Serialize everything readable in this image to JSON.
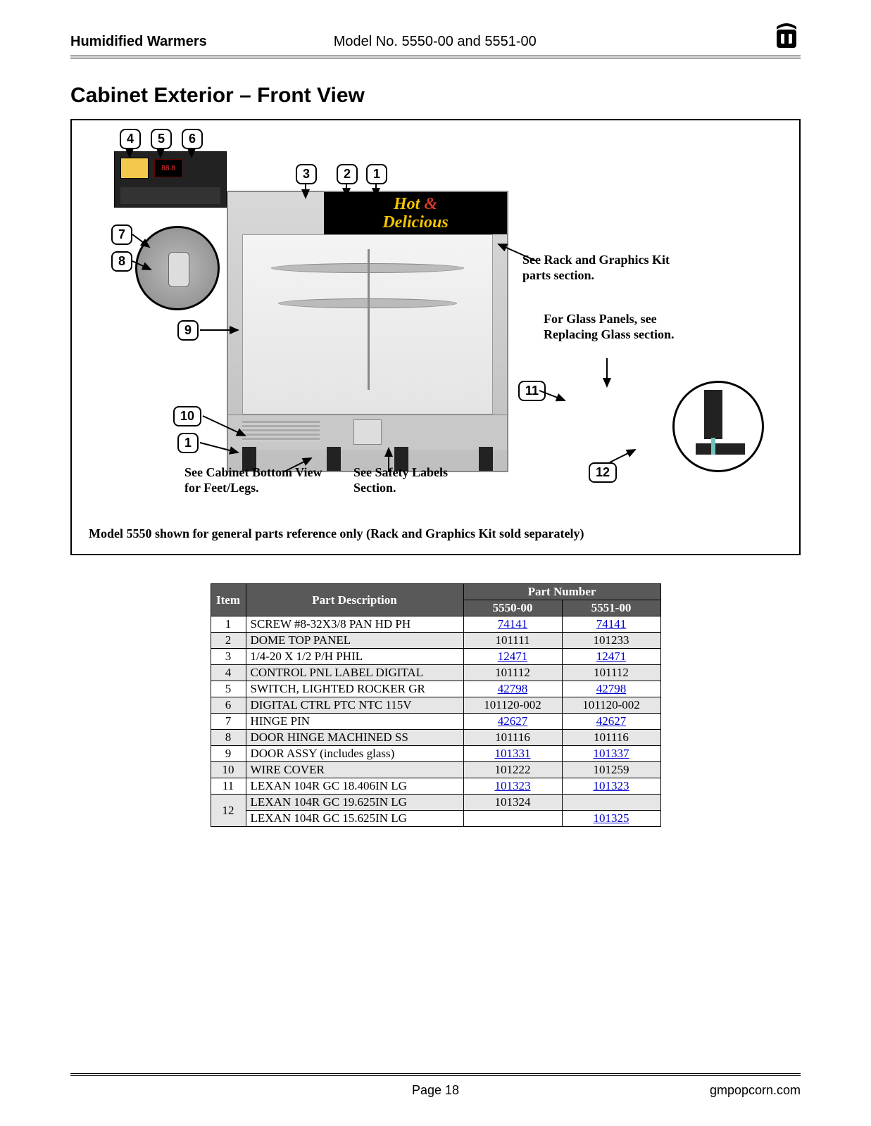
{
  "header": {
    "left": "Humidified Warmers",
    "mid": "Model No. 5550-00 and 5551-00"
  },
  "section_title": "Cabinet Exterior – Front View",
  "product_sign": {
    "line1": "Hot",
    "amp": "&",
    "line2": "Delicious"
  },
  "callouts": {
    "n1a": "1",
    "n1b": "1",
    "n2": "2",
    "n3": "3",
    "n4": "4",
    "n5": "5",
    "n6": "6",
    "n7": "7",
    "n8": "8",
    "n9": "9",
    "n10": "10",
    "n11": "11",
    "n12": "12"
  },
  "notes": {
    "rack": "See Rack and Graphics Kit parts section.",
    "glass": "For Glass Panels, see Replacing Glass section.",
    "feet": "See Cabinet Bottom View for Feet/Legs.",
    "safety": "See Safety Labels Section."
  },
  "diagram_caption": "Model 5550 shown for general parts reference only (Rack and Graphics Kit sold separately)",
  "table": {
    "headers": {
      "item": "Item",
      "desc": "Part Description",
      "pn": "Part Number",
      "m1": "5550-00",
      "m2": "5551-00"
    },
    "rows": [
      {
        "item": "1",
        "desc": "SCREW #8-32X3/8 PAN HD PH",
        "m1": "74141",
        "m1_link": true,
        "m2": "74141",
        "m2_link": true,
        "shade": false
      },
      {
        "item": "2",
        "desc": "DOME TOP PANEL",
        "m1": "101111",
        "m1_link": false,
        "m2": "101233",
        "m2_link": false,
        "shade": true
      },
      {
        "item": "3",
        "desc": "1/4-20 X 1/2 P/H PHIL",
        "m1": "12471",
        "m1_link": true,
        "m2": "12471",
        "m2_link": true,
        "shade": false
      },
      {
        "item": "4",
        "desc": "CONTROL PNL LABEL DIGITAL",
        "m1": "101112",
        "m1_link": false,
        "m2": "101112",
        "m2_link": false,
        "shade": true
      },
      {
        "item": "5",
        "desc": "SWITCH, LIGHTED ROCKER GR",
        "m1": "42798",
        "m1_link": true,
        "m2": "42798",
        "m2_link": true,
        "shade": false
      },
      {
        "item": "6",
        "desc": "DIGITAL CTRL PTC NTC 115V",
        "m1": "101120-002",
        "m1_link": false,
        "m2": "101120-002",
        "m2_link": false,
        "shade": true
      },
      {
        "item": "7",
        "desc": "HINGE PIN",
        "m1": "42627",
        "m1_link": true,
        "m2": "42627",
        "m2_link": true,
        "shade": false
      },
      {
        "item": "8",
        "desc": "DOOR HINGE MACHINED SS",
        "m1": "101116",
        "m1_link": false,
        "m2": "101116",
        "m2_link": false,
        "shade": true
      },
      {
        "item": "9",
        "desc": "DOOR ASSY (includes glass)",
        "m1": "101331",
        "m1_link": true,
        "m2": "101337",
        "m2_link": true,
        "shade": false
      },
      {
        "item": "10",
        "desc": "WIRE COVER",
        "m1": "101222",
        "m1_link": false,
        "m2": "101259",
        "m2_link": false,
        "shade": true
      },
      {
        "item": "11",
        "desc": "LEXAN 104R GC 18.406IN LG",
        "m1": "101323",
        "m1_link": true,
        "m2": "101323",
        "m2_link": true,
        "shade": false
      },
      {
        "item": "12",
        "rowspan": 2,
        "desc": "LEXAN 104R GC 19.625IN LG",
        "m1": "101324",
        "m1_link": false,
        "m2": "",
        "m2_link": false,
        "shade": true
      },
      {
        "item": "",
        "desc": "LEXAN 104R GC 15.625IN LG",
        "m1": "",
        "m1_link": false,
        "m2": "101325",
        "m2_link": true,
        "shade": false,
        "skip_item": true
      }
    ]
  },
  "footer": {
    "page": "Page 18",
    "site": "gmpopcorn.com"
  }
}
